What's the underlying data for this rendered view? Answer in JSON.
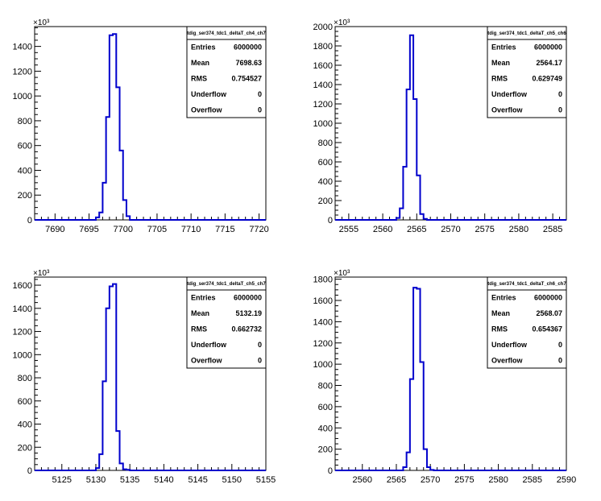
{
  "chart_data": [
    {
      "type": "histogram",
      "stats_title": "tdig_ser374_tdc1_deltaT_ch4_ch7",
      "exponent_label": "×10³",
      "xlim": [
        7687,
        7721
      ],
      "ylim": [
        0,
        1560
      ],
      "x_ticks": [
        7690,
        7695,
        7700,
        7705,
        7710,
        7715,
        7720
      ],
      "y_ticks": [
        0,
        200,
        400,
        600,
        800,
        1000,
        1200,
        1400
      ],
      "bins": {
        "edges": [
          7696,
          7696.5,
          7697,
          7697.5,
          7698,
          7698.5,
          7699,
          7699.5,
          7700,
          7700.5,
          7701
        ],
        "counts": [
          20,
          60,
          300,
          830,
          1490,
          1500,
          1070,
          560,
          160,
          30
        ]
      },
      "stats": [
        {
          "label": "Entries",
          "value": "6000000"
        },
        {
          "label": "Mean",
          "value": "7698.63"
        },
        {
          "label": "RMS",
          "value": "0.754527"
        },
        {
          "label": "Underflow",
          "value": "0"
        },
        {
          "label": "Overflow",
          "value": "0"
        }
      ]
    },
    {
      "type": "histogram",
      "stats_title": "tdig_ser374_tdc1_deltaT_ch5_ch6",
      "exponent_label": "×10³",
      "xlim": [
        2553,
        2587
      ],
      "ylim": [
        0,
        2000
      ],
      "x_ticks": [
        2555,
        2560,
        2565,
        2570,
        2575,
        2580,
        2585
      ],
      "y_ticks": [
        0,
        200,
        400,
        600,
        800,
        1000,
        1200,
        1400,
        1600,
        1800,
        2000
      ],
      "bins": {
        "edges": [
          2562,
          2562.5,
          2563,
          2563.5,
          2564,
          2564.5,
          2565,
          2565.5,
          2566,
          2566.5
        ],
        "counts": [
          20,
          120,
          550,
          1350,
          1910,
          1250,
          460,
          60,
          10
        ]
      },
      "stats": [
        {
          "label": "Entries",
          "value": "6000000"
        },
        {
          "label": "Mean",
          "value": "2564.17"
        },
        {
          "label": "RMS",
          "value": "0.629749"
        },
        {
          "label": "Underflow",
          "value": "0"
        },
        {
          "label": "Overflow",
          "value": "0"
        }
      ]
    },
    {
      "type": "histogram",
      "stats_title": "tdig_ser374_tdc1_deltaT_ch5_ch7",
      "exponent_label": "×10³",
      "xlim": [
        5121,
        5155
      ],
      "ylim": [
        0,
        1670
      ],
      "x_ticks": [
        5125,
        5130,
        5135,
        5140,
        5145,
        5150,
        5155
      ],
      "y_ticks": [
        0,
        200,
        400,
        600,
        800,
        1000,
        1200,
        1400,
        1600
      ],
      "bins": {
        "edges": [
          5130,
          5130.5,
          5131,
          5131.5,
          5132,
          5132.5,
          5133,
          5133.5,
          5134,
          5134.5,
          5135
        ],
        "counts": [
          20,
          140,
          770,
          1400,
          1590,
          1610,
          340,
          60,
          10,
          5
        ]
      },
      "stats": [
        {
          "label": "Entries",
          "value": "6000000"
        },
        {
          "label": "Mean",
          "value": "5132.19"
        },
        {
          "label": "RMS",
          "value": "0.662732"
        },
        {
          "label": "Underflow",
          "value": "0"
        },
        {
          "label": "Overflow",
          "value": "0"
        }
      ]
    },
    {
      "type": "histogram",
      "stats_title": "tdig_ser374_tdc1_deltaT_ch6_ch7",
      "exponent_label": "×10³",
      "xlim": [
        2556,
        2590
      ],
      "ylim": [
        0,
        1820
      ],
      "x_ticks": [
        2560,
        2565,
        2570,
        2575,
        2580,
        2585,
        2590
      ],
      "y_ticks": [
        0,
        200,
        400,
        600,
        800,
        1000,
        1200,
        1400,
        1600,
        1800
      ],
      "bins": {
        "edges": [
          2566,
          2566.5,
          2567,
          2567.5,
          2568,
          2568.5,
          2569,
          2569.5,
          2570,
          2570.5
        ],
        "counts": [
          30,
          170,
          860,
          1720,
          1710,
          1020,
          200,
          30,
          5
        ]
      },
      "stats": [
        {
          "label": "Entries",
          "value": "6000000"
        },
        {
          "label": "Mean",
          "value": "2568.07"
        },
        {
          "label": "RMS",
          "value": "0.654367"
        },
        {
          "label": "Underflow",
          "value": "0"
        },
        {
          "label": "Overflow",
          "value": "0"
        }
      ]
    }
  ]
}
